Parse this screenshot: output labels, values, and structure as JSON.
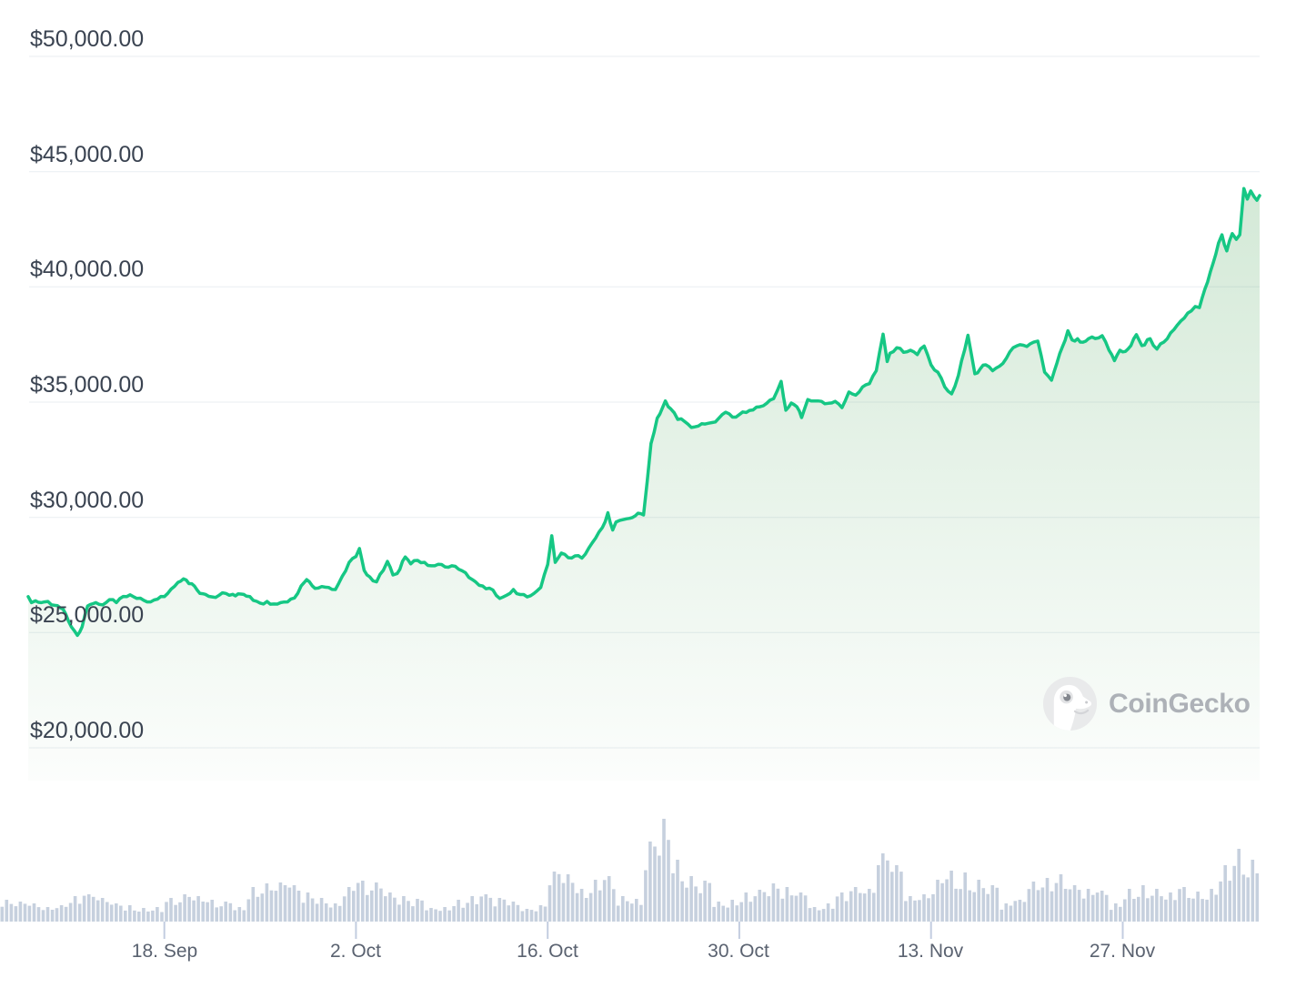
{
  "watermark": {
    "text": "CoinGecko"
  },
  "colors": {
    "background": "#ffffff",
    "line": "#16c784",
    "area_fill": "#56aa64",
    "gridline": "#e9edf2",
    "y_axis_label": "#3a4351",
    "x_axis_label": "#5a6270",
    "volume_bar": "#c6d0de",
    "tick_stem": "#c3cde0",
    "watermark_text": "#adb1b7",
    "logo_circle": "#e9eaeb"
  },
  "chart_data": [
    {
      "type": "area",
      "name": "price",
      "currency": "USD",
      "ylim": [
        20000,
        50000
      ],
      "ytick_values": [
        50000,
        45000,
        40000,
        35000,
        30000,
        25000,
        20000
      ],
      "ytick_labels": [
        "$50,000.00",
        "$45,000.00",
        "$40,000.00",
        "$35,000.00",
        "$30,000.00",
        "$25,000.00",
        "$20,000.00"
      ],
      "x_domain_days": 92,
      "xtick_day_offsets": [
        12,
        26,
        40,
        54,
        68,
        82
      ],
      "xtick_labels": [
        "18. Sep",
        "2. Oct",
        "16. Oct",
        "30. Oct",
        "13. Nov",
        "27. Nov"
      ],
      "grid": true,
      "legend": false,
      "points": [
        [
          2.06,
          26560
        ],
        [
          2.3,
          26300
        ],
        [
          2.6,
          26380
        ],
        [
          3,
          26300
        ],
        [
          3.5,
          26350
        ],
        [
          4,
          26180
        ],
        [
          4.6,
          26020
        ],
        [
          5,
          25500
        ],
        [
          5.65,
          24880
        ],
        [
          6,
          25250
        ],
        [
          6.4,
          26150
        ],
        [
          7,
          26300
        ],
        [
          7.5,
          26200
        ],
        [
          8,
          26430
        ],
        [
          8.5,
          26300
        ],
        [
          9,
          26570
        ],
        [
          9.5,
          26640
        ],
        [
          10,
          26480
        ],
        [
          10.5,
          26400
        ],
        [
          11,
          26330
        ],
        [
          11.5,
          26450
        ],
        [
          12,
          26560
        ],
        [
          12.5,
          26890
        ],
        [
          13,
          27180
        ],
        [
          13.4,
          27330
        ],
        [
          14,
          27120
        ],
        [
          14.6,
          26700
        ],
        [
          15,
          26660
        ],
        [
          15.5,
          26550
        ],
        [
          16,
          26620
        ],
        [
          16.5,
          26700
        ],
        [
          17,
          26660
        ],
        [
          18,
          26580
        ],
        [
          18.5,
          26400
        ],
        [
          19,
          26280
        ],
        [
          19.5,
          26350
        ],
        [
          20,
          26240
        ],
        [
          20.5,
          26300
        ],
        [
          21,
          26330
        ],
        [
          21.5,
          26500
        ],
        [
          22,
          27030
        ],
        [
          22.4,
          27300
        ],
        [
          23,
          26920
        ],
        [
          23.5,
          27000
        ],
        [
          24,
          26960
        ],
        [
          24.5,
          26870
        ],
        [
          25,
          27450
        ],
        [
          25.5,
          28050
        ],
        [
          26,
          28300
        ],
        [
          26.25,
          28650
        ],
        [
          26.6,
          27700
        ],
        [
          27,
          27420
        ],
        [
          27.5,
          27200
        ],
        [
          28,
          27700
        ],
        [
          28.3,
          28090
        ],
        [
          28.7,
          27500
        ],
        [
          29,
          27560
        ],
        [
          29.6,
          28280
        ],
        [
          30,
          27980
        ],
        [
          30.5,
          28130
        ],
        [
          31,
          28050
        ],
        [
          31.5,
          27900
        ],
        [
          32,
          27960
        ],
        [
          32.5,
          27850
        ],
        [
          33,
          27900
        ],
        [
          33.5,
          27750
        ],
        [
          34,
          27600
        ],
        [
          34.5,
          27300
        ],
        [
          35,
          27050
        ],
        [
          35.5,
          26900
        ],
        [
          36,
          26850
        ],
        [
          36.5,
          26480
        ],
        [
          37,
          26620
        ],
        [
          37.5,
          26870
        ],
        [
          38,
          26650
        ],
        [
          38.5,
          26550
        ],
        [
          39,
          26700
        ],
        [
          39.5,
          26960
        ],
        [
          40,
          27950
        ],
        [
          40.3,
          29200
        ],
        [
          40.55,
          28050
        ],
        [
          41,
          28450
        ],
        [
          41.5,
          28250
        ],
        [
          42,
          28330
        ],
        [
          42.5,
          28230
        ],
        [
          43,
          28660
        ],
        [
          43.5,
          29100
        ],
        [
          44,
          29560
        ],
        [
          44.4,
          30200
        ],
        [
          44.75,
          29450
        ],
        [
          45,
          29800
        ],
        [
          45.5,
          29900
        ],
        [
          46,
          29960
        ],
        [
          46.8,
          30160
        ],
        [
          47,
          30100
        ],
        [
          47.55,
          33200
        ],
        [
          48,
          34300
        ],
        [
          48.6,
          35050
        ],
        [
          49,
          34700
        ],
        [
          49.5,
          34250
        ],
        [
          50,
          34160
        ],
        [
          50.5,
          33900
        ],
        [
          51,
          33960
        ],
        [
          51.5,
          34050
        ],
        [
          52,
          34110
        ],
        [
          52.5,
          34300
        ],
        [
          53,
          34560
        ],
        [
          53.5,
          34350
        ],
        [
          54,
          34460
        ],
        [
          54.5,
          34550
        ],
        [
          55,
          34660
        ],
        [
          55.5,
          34800
        ],
        [
          56,
          34950
        ],
        [
          56.5,
          35150
        ],
        [
          57.05,
          35900
        ],
        [
          57.4,
          34650
        ],
        [
          57.8,
          34960
        ],
        [
          58.2,
          34800
        ],
        [
          58.55,
          34330
        ],
        [
          59,
          35110
        ],
        [
          59.5,
          35050
        ],
        [
          60,
          35030
        ],
        [
          60.5,
          34950
        ],
        [
          61,
          35030
        ],
        [
          61.5,
          34760
        ],
        [
          62,
          35440
        ],
        [
          62.5,
          35300
        ],
        [
          63,
          35660
        ],
        [
          63.5,
          35800
        ],
        [
          64,
          36360
        ],
        [
          64.5,
          37950
        ],
        [
          64.8,
          36760
        ],
        [
          65,
          37120
        ],
        [
          65.5,
          37360
        ],
        [
          66,
          37160
        ],
        [
          66.5,
          37250
        ],
        [
          67,
          37060
        ],
        [
          67.5,
          37430
        ],
        [
          68,
          36620
        ],
        [
          68.5,
          36300
        ],
        [
          69,
          35660
        ],
        [
          69.5,
          35360
        ],
        [
          70,
          36160
        ],
        [
          70.7,
          37900
        ],
        [
          71.2,
          36230
        ],
        [
          71.6,
          36450
        ],
        [
          72,
          36620
        ],
        [
          72.5,
          36360
        ],
        [
          73,
          36560
        ],
        [
          73.5,
          36900
        ],
        [
          74,
          37360
        ],
        [
          74.5,
          37490
        ],
        [
          75,
          37410
        ],
        [
          75.5,
          37600
        ],
        [
          75.8,
          37650
        ],
        [
          76.3,
          36300
        ],
        [
          76.8,
          35950
        ],
        [
          77.2,
          36700
        ],
        [
          77.6,
          37400
        ],
        [
          78,
          38100
        ],
        [
          78.3,
          37700
        ],
        [
          78.7,
          37750
        ],
        [
          79.1,
          37600
        ],
        [
          79.5,
          37750
        ],
        [
          80,
          37760
        ],
        [
          80.5,
          37880
        ],
        [
          81,
          37250
        ],
        [
          81.4,
          36800
        ],
        [
          81.8,
          37250
        ],
        [
          82.2,
          37200
        ],
        [
          82.6,
          37450
        ],
        [
          83,
          37930
        ],
        [
          83.4,
          37450
        ],
        [
          84,
          37750
        ],
        [
          84.5,
          37300
        ],
        [
          85,
          37600
        ],
        [
          85.5,
          38000
        ],
        [
          86,
          38350
        ],
        [
          86.5,
          38650
        ],
        [
          87,
          38950
        ],
        [
          87.3,
          39150
        ],
        [
          87.6,
          39100
        ],
        [
          88,
          39900
        ],
        [
          88.4,
          40650
        ],
        [
          89,
          41900
        ],
        [
          89.25,
          42260
        ],
        [
          89.6,
          41560
        ],
        [
          90,
          42310
        ],
        [
          90.3,
          42060
        ],
        [
          90.55,
          42260
        ],
        [
          90.85,
          44270
        ],
        [
          91.1,
          43810
        ],
        [
          91.35,
          44160
        ],
        [
          91.6,
          43910
        ],
        [
          91.8,
          43760
        ],
        [
          92,
          43960
        ]
      ]
    },
    {
      "type": "bar",
      "name": "volume",
      "units": "relative-height",
      "x_domain_days": 92,
      "values": [
        24,
        22,
        20,
        16,
        18,
        28,
        30,
        26,
        20,
        18,
        15,
        16,
        26,
        30,
        28,
        24,
        22,
        16,
        38,
        42,
        43,
        40,
        32,
        26,
        20,
        38,
        45,
        43,
        32,
        28,
        25,
        15,
        16,
        24,
        28,
        30,
        26,
        22,
        14,
        18,
        55,
        52,
        36,
        46,
        50,
        28,
        25,
        88,
        113,
        68,
        50,
        45,
        22,
        24,
        32,
        35,
        42,
        38,
        32,
        16,
        20,
        32,
        38,
        36,
        75,
        62,
        28,
        30,
        46,
        56,
        54,
        46,
        40,
        20,
        24,
        44,
        48,
        52,
        40,
        36,
        34,
        20,
        36,
        40,
        36,
        32,
        38,
        33,
        36,
        62,
        80,
        68,
        76
      ]
    }
  ]
}
